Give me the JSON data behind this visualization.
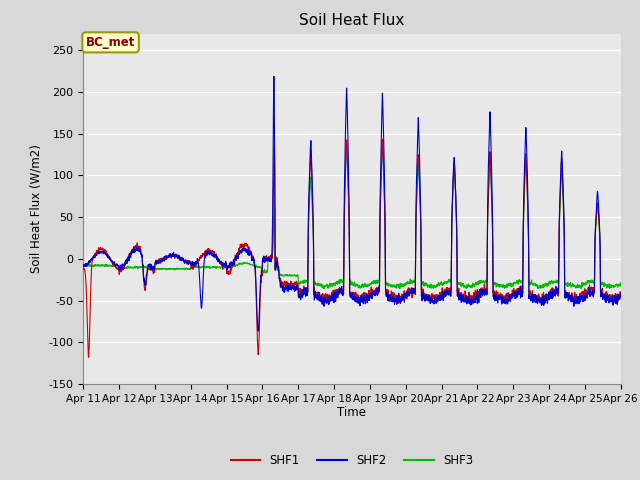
{
  "title": "Soil Heat Flux",
  "xlabel": "Time",
  "ylabel": "Soil Heat Flux (W/m2)",
  "ylim": [
    -150,
    270
  ],
  "yticks": [
    -150,
    -100,
    -50,
    0,
    50,
    100,
    150,
    200,
    250
  ],
  "colors": {
    "SHF1": "#cc0000",
    "SHF2": "#0000cc",
    "SHF3": "#00bb00"
  },
  "linewidth": 0.8,
  "background_color": "#e8e8e8",
  "annotation_text": "BC_met",
  "annotation_bg": "#ffffcc",
  "annotation_border": "#999900",
  "annotation_text_color": "#880000",
  "x_tick_labels": [
    "Apr 11",
    "Apr 12",
    "Apr 13",
    "Apr 14",
    "Apr 15",
    "Apr 16",
    "Apr 17",
    "Apr 18",
    "Apr 19",
    "Apr 20",
    "Apr 21",
    "Apr 22",
    "Apr 23",
    "Apr 24",
    "Apr 25",
    "Apr 26"
  ],
  "legend_labels": [
    "SHF1",
    "SHF2",
    "SHF3"
  ]
}
